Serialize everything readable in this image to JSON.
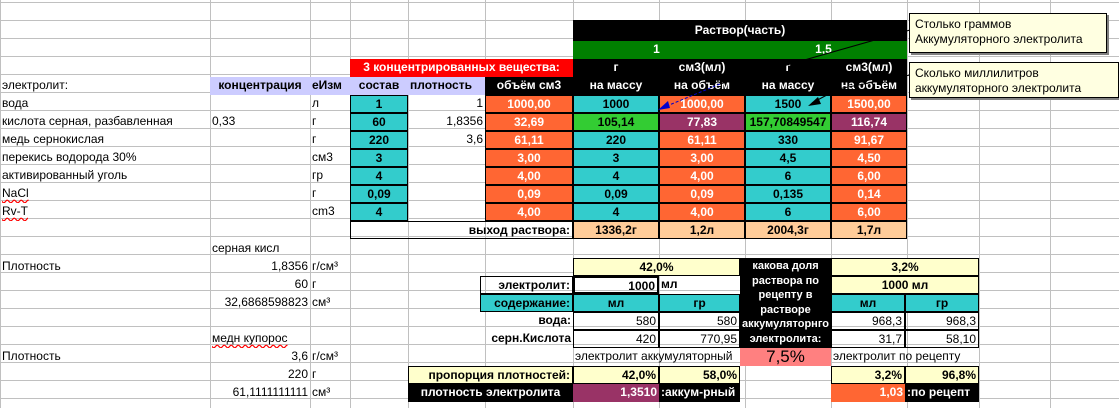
{
  "header": {
    "title": "Раствор(часть)",
    "part_1": "1",
    "part_2": "1,5",
    "concentrated_title": "3 концентрированных вещества:",
    "units_g": "г",
    "units_cm3_ml": "см3(мл)",
    "col_labels": [
      "электролит:",
      "концентрация",
      "еИзм",
      "состав",
      "плотность",
      "объём см3",
      "на массу",
      "на объём",
      "на массу",
      "на объём"
    ]
  },
  "rows": [
    {
      "name": "вода",
      "conc": "",
      "unit": "л",
      "sostav": "1",
      "density": "1",
      "volume": "1000,00",
      "m1": "1000",
      "v1": "1000,00",
      "m2": "1500",
      "v2": "1500,00"
    },
    {
      "name": "кислота серная, разбавленная",
      "conc": "0,33",
      "unit": "г",
      "sostav": "60",
      "density": "1,8356",
      "volume": "32,69",
      "m1": "105,14",
      "v1": "77,83",
      "m2": "157,70849547",
      "v2": "116,74"
    },
    {
      "name": "медь сернокислая",
      "conc": "",
      "unit": "г",
      "sostav": "220",
      "density": "3,6",
      "volume": "61,11",
      "m1": "220",
      "v1": "61,11",
      "m2": "330",
      "v2": "91,67"
    },
    {
      "name": "перекись водорода 30%",
      "conc": "",
      "unit": "см3",
      "sostav": "3",
      "density": "",
      "volume": "3,00",
      "m1": "3",
      "v1": "3,00",
      "m2": "4,5",
      "v2": "4,50"
    },
    {
      "name": "активированный уголь",
      "conc": "",
      "unit": "гр",
      "sostav": "4",
      "density": "",
      "volume": "4,00",
      "m1": "4",
      "v1": "4,00",
      "m2": "6",
      "v2": "6,00"
    },
    {
      "name": "NaCl",
      "conc": "",
      "unit": "г",
      "sostav": "0,09",
      "density": "",
      "volume": "0,09",
      "m1": "0,09",
      "v1": "0,09",
      "m2": "0,135",
      "v2": "0,14"
    },
    {
      "name": "Rv-T",
      "conc": "",
      "unit": "cm3",
      "sostav": "4",
      "density": "",
      "volume": "4,00",
      "m1": "4",
      "v1": "4,00",
      "m2": "6",
      "v2": "6,00"
    }
  ],
  "output": {
    "label": "выход раствора:",
    "m1": "1336,2г",
    "v1": "1,2л",
    "m2": "2004,3г",
    "v2": "1,7л"
  },
  "left": {
    "sulfuric_title": "серная кисл",
    "density_label_1": "Плотность",
    "density_val_1": "1,8356",
    "density_unit_1": "г/см³",
    "mass_1": "60",
    "mass_unit_1": "г",
    "vol_1": "32,6868598823",
    "vol_unit_1": "см³",
    "copper_title": "медн купорос",
    "density_label_2": "Плотность",
    "density_val_2": "3,6",
    "density_unit_2": "г/см³",
    "mass_2": "220",
    "mass_unit_2": "г",
    "vol_2": "61,1111111111",
    "vol_unit_2": "см³"
  },
  "calc": {
    "pct_1": "42,0%",
    "pct_2": "3,2%",
    "electrolyte_label": "электролит:",
    "electrolyte_val_1": "1000",
    "electrolyte_unit_1": "мл",
    "electrolyte_val_2": "1000 мл",
    "content_label": "содержание:",
    "ml": "мл",
    "gr": "гр",
    "water_label": "вода:",
    "water_ml_1": "580",
    "water_gr_1": "580",
    "water_ml_2": "968,3",
    "water_gr_2": "968,3",
    "acid_label": "серн.Кислота",
    "acid_ml_1": "420",
    "acid_gr_1": "770,95",
    "acid_ml_2": "31,7",
    "acid_gr_2": "58,10",
    "question": "какова доля раствора по рецепту в растворе аккумуляторнго электролита:",
    "share": "7,5%",
    "electrolyte_battery": "электролит аккумуляторный",
    "electrolyte_recipe": "электролит по рецепту",
    "proportion_label": "пропорция плотностей:",
    "prop_1a": "42,0%",
    "prop_1b": "58,0%",
    "prop_2a": "3,2%",
    "prop_2b": "96,8%",
    "density_label": "плотность электролита",
    "density_1": "1,3510",
    "density_1_note": ":аккум-рный",
    "density_2": "1,03",
    "density_2_note": ":по рецепт"
  },
  "notes": {
    "grams": "Столько граммов Аккумуляторного электролита",
    "ml": "Сколько миллилитров аккумуляторного электролита"
  }
}
